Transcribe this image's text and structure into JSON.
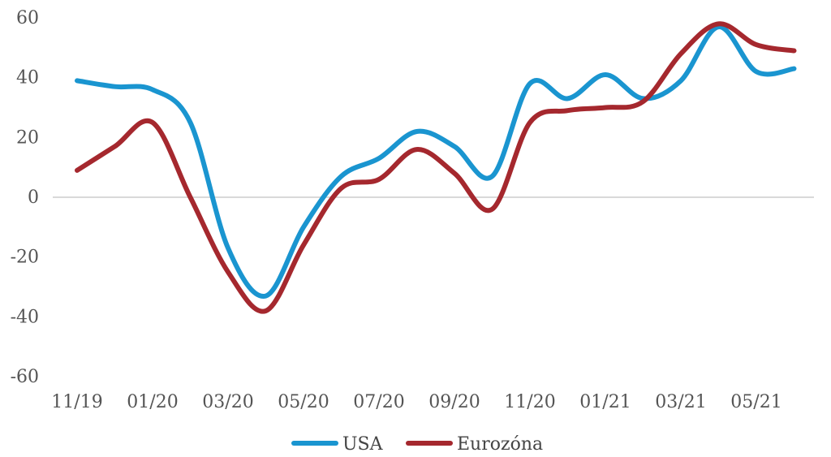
{
  "chart_data": {
    "type": "line",
    "title": "",
    "xlabel": "",
    "ylabel": "",
    "ylim": [
      -60,
      60
    ],
    "yticks": [
      60,
      40,
      20,
      0,
      -20,
      -40,
      -60
    ],
    "x_labels": [
      "11/19",
      "01/20",
      "03/20",
      "05/20",
      "07/20",
      "09/20",
      "11/20",
      "01/21",
      "03/21",
      "05/21"
    ],
    "x": [
      "11/19",
      "12/19",
      "01/20",
      "02/20",
      "03/20",
      "04/20",
      "05/20",
      "06/20",
      "07/20",
      "08/20",
      "09/20",
      "10/20",
      "11/20",
      "12/20",
      "01/21",
      "02/21",
      "03/21",
      "04/21",
      "05/21",
      "06/21"
    ],
    "grid": false,
    "legend_position": "bottom",
    "series": [
      {
        "name": "USA",
        "color": "#1a95d0",
        "values": [
          39,
          37,
          36,
          25,
          -17,
          -33,
          -10,
          7,
          13,
          22,
          17,
          7,
          38,
          33,
          41,
          33,
          39,
          57,
          42,
          43
        ]
      },
      {
        "name": "Eurozóna",
        "color": "#a5282e",
        "values": [
          9,
          17,
          25,
          0,
          -25,
          -38,
          -16,
          3,
          6,
          16,
          8,
          -4,
          25,
          29,
          30,
          32,
          48,
          58,
          51,
          49
        ]
      }
    ]
  }
}
